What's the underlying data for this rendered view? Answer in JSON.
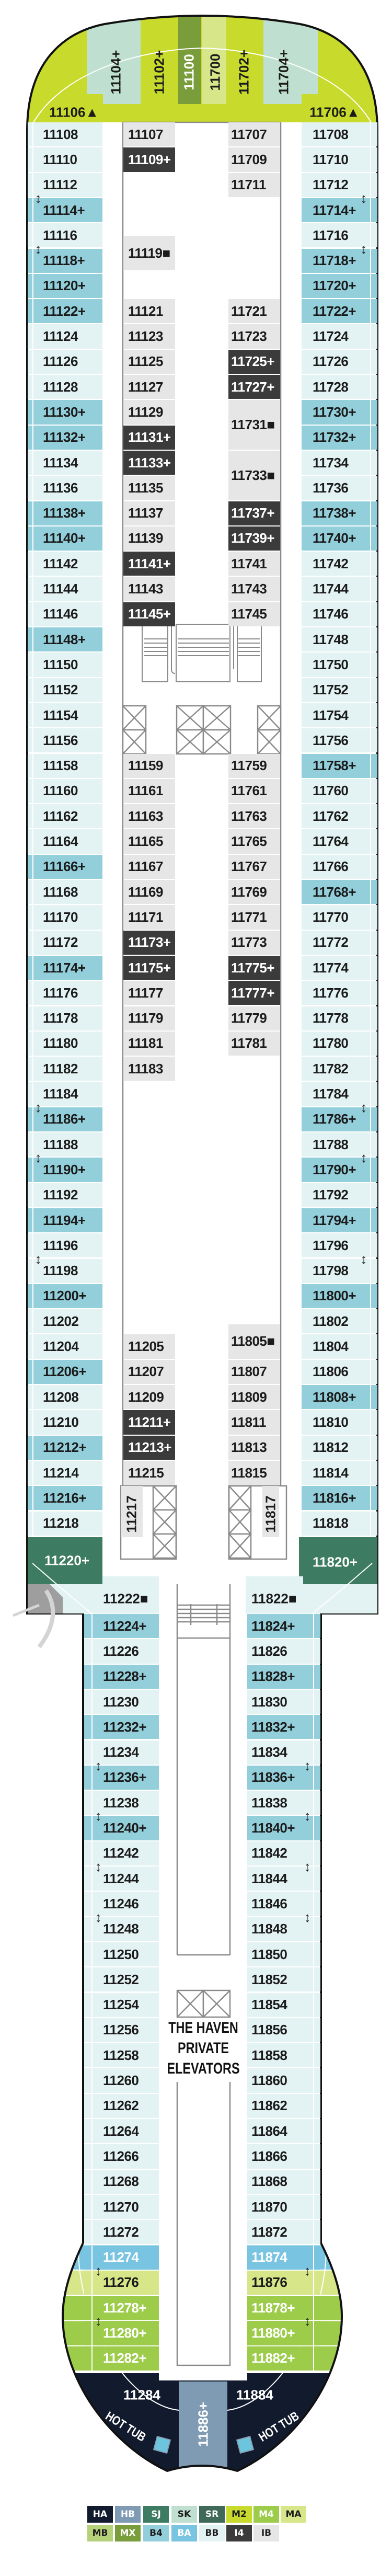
{
  "categories": {
    "HA": "#121b2d",
    "HB": "#7f9bb3",
    "SJ": "#3d7b62",
    "SK": "#bfe0d0",
    "SR": "#3f6a5a",
    "M2": "#c8da2c",
    "M4": "#9dcc4b",
    "MA": "#d8e68a",
    "MB": "#b5d27b",
    "MX": "#7a9d3b",
    "B4": "#93cfdb",
    "BA": "#79c4e1",
    "BB": "#e3f2f2",
    "I4": "#3b3b3b",
    "IB": "#e6e6e6"
  },
  "light_text_categories": [
    "HA",
    "HB",
    "SJ",
    "SR",
    "M4",
    "MX",
    "BA",
    "I4"
  ],
  "bow": {
    "vertical_cabins": [
      [
        "11104+",
        "SK"
      ],
      [
        "11102+",
        "M2"
      ],
      [
        "11100",
        "MX"
      ],
      [
        "11700",
        "MA"
      ],
      [
        "11702+",
        "M2"
      ],
      [
        "11704+",
        "SK"
      ]
    ],
    "corner_left": [
      "11106▲",
      "M2"
    ],
    "corner_right": [
      "11706▲",
      "M2"
    ]
  },
  "upper_left_outer": [
    [
      "11108",
      "BB"
    ],
    [
      "11110",
      "BB"
    ],
    [
      "11112",
      "BB"
    ],
    [
      "11114+",
      "B4"
    ],
    [
      "11116",
      "BB"
    ],
    [
      "11118+",
      "B4"
    ],
    [
      "11120+",
      "B4"
    ],
    [
      "11122+",
      "B4"
    ],
    [
      "11124",
      "BB"
    ],
    [
      "11126",
      "BB"
    ],
    [
      "11128",
      "BB"
    ],
    [
      "11130+",
      "B4"
    ],
    [
      "11132+",
      "B4"
    ],
    [
      "11134",
      "BB"
    ],
    [
      "11136",
      "BB"
    ],
    [
      "11138+",
      "B4"
    ],
    [
      "11140+",
      "B4"
    ],
    [
      "11142",
      "BB"
    ],
    [
      "11144",
      "BB"
    ],
    [
      "11146",
      "BB"
    ],
    [
      "11148+",
      "B4"
    ],
    [
      "11150",
      "BB"
    ],
    [
      "11152",
      "BB"
    ],
    [
      "11154",
      "BB"
    ],
    [
      "11156",
      "BB"
    ],
    [
      "11158",
      "BB"
    ],
    [
      "11160",
      "BB"
    ],
    [
      "11162",
      "BB"
    ],
    [
      "11164",
      "BB"
    ],
    [
      "11166+",
      "B4"
    ],
    [
      "11168",
      "BB"
    ],
    [
      "11170",
      "BB"
    ],
    [
      "11172",
      "BB"
    ],
    [
      "11174+",
      "B4"
    ],
    [
      "11176",
      "BB"
    ],
    [
      "11178",
      "BB"
    ],
    [
      "11180",
      "BB"
    ],
    [
      "11182",
      "BB"
    ],
    [
      "11184",
      "BB"
    ],
    [
      "11186+",
      "B4"
    ],
    [
      "11188",
      "BB"
    ],
    [
      "11190+",
      "B4"
    ],
    [
      "11192",
      "BB"
    ],
    [
      "11194+",
      "B4"
    ],
    [
      "11196",
      "BB"
    ],
    [
      "11198",
      "BB"
    ],
    [
      "11200+",
      "B4"
    ],
    [
      "11202",
      "BB"
    ],
    [
      "11204",
      "BB"
    ],
    [
      "11206+",
      "B4"
    ],
    [
      "11208",
      "BB"
    ],
    [
      "11210",
      "BB"
    ],
    [
      "11212+",
      "B4"
    ],
    [
      "11214",
      "BB"
    ],
    [
      "11216+",
      "B4"
    ],
    [
      "11218",
      "BB"
    ]
  ],
  "upper_right_outer": [
    [
      "11708",
      "BB"
    ],
    [
      "11710",
      "BB"
    ],
    [
      "11712",
      "BB"
    ],
    [
      "11714+",
      "B4"
    ],
    [
      "11716",
      "BB"
    ],
    [
      "11718+",
      "B4"
    ],
    [
      "11720+",
      "B4"
    ],
    [
      "11722+",
      "B4"
    ],
    [
      "11724",
      "BB"
    ],
    [
      "11726",
      "BB"
    ],
    [
      "11728",
      "BB"
    ],
    [
      "11730+",
      "B4"
    ],
    [
      "11732+",
      "B4"
    ],
    [
      "11734",
      "BB"
    ],
    [
      "11736",
      "BB"
    ],
    [
      "11738+",
      "B4"
    ],
    [
      "11740+",
      "B4"
    ],
    [
      "11742",
      "BB"
    ],
    [
      "11744",
      "BB"
    ],
    [
      "11746",
      "BB"
    ],
    [
      "11748",
      "BB"
    ],
    [
      "11750",
      "BB"
    ],
    [
      "11752",
      "BB"
    ],
    [
      "11754",
      "BB"
    ],
    [
      "11756",
      "BB"
    ],
    [
      "11758+",
      "B4"
    ],
    [
      "11760",
      "BB"
    ],
    [
      "11762",
      "BB"
    ],
    [
      "11764",
      "BB"
    ],
    [
      "11766",
      "BB"
    ],
    [
      "11768+",
      "B4"
    ],
    [
      "11770",
      "BB"
    ],
    [
      "11772",
      "BB"
    ],
    [
      "11774",
      "BB"
    ],
    [
      "11776",
      "BB"
    ],
    [
      "11778",
      "BB"
    ],
    [
      "11780",
      "BB"
    ],
    [
      "11782",
      "BB"
    ],
    [
      "11784",
      "BB"
    ],
    [
      "11786+",
      "B4"
    ],
    [
      "11788",
      "BB"
    ],
    [
      "11790+",
      "B4"
    ],
    [
      "11792",
      "BB"
    ],
    [
      "11794+",
      "B4"
    ],
    [
      "11796",
      "BB"
    ],
    [
      "11798",
      "BB"
    ],
    [
      "11800+",
      "B4"
    ],
    [
      "11802",
      "BB"
    ],
    [
      "11804",
      "BB"
    ],
    [
      "11806",
      "BB"
    ],
    [
      "11808+",
      "B4"
    ],
    [
      "11810",
      "BB"
    ],
    [
      "11812",
      "BB"
    ],
    [
      "11814",
      "BB"
    ],
    [
      "11816+",
      "B4"
    ],
    [
      "11818",
      "BB"
    ]
  ],
  "upper_left_inner": [
    [
      [
        "11107",
        "IB"
      ],
      [
        "11109+",
        "I4"
      ]
    ],
    [
      [
        "11119■",
        "IB"
      ]
    ],
    [
      [
        "11121",
        "IB"
      ],
      [
        "11123",
        "IB"
      ],
      [
        "11125",
        "IB"
      ],
      [
        "11127",
        "IB"
      ],
      [
        "11129",
        "IB"
      ],
      [
        "11131+",
        "I4"
      ],
      [
        "11133+",
        "I4"
      ],
      [
        "11135",
        "IB"
      ],
      [
        "11137",
        "IB"
      ],
      [
        "11139",
        "IB"
      ],
      [
        "11141+",
        "I4"
      ],
      [
        "11143",
        "IB"
      ],
      [
        "11145+",
        "I4"
      ]
    ],
    [
      [
        "11159",
        "IB"
      ],
      [
        "11161",
        "IB"
      ],
      [
        "11163",
        "IB"
      ],
      [
        "11165",
        "IB"
      ],
      [
        "11167",
        "IB"
      ],
      [
        "11169",
        "IB"
      ],
      [
        "11171",
        "IB"
      ],
      [
        "11173+",
        "I4"
      ],
      [
        "11175+",
        "I4"
      ],
      [
        "11177",
        "IB"
      ],
      [
        "11179",
        "IB"
      ],
      [
        "11181",
        "IB"
      ],
      [
        "11183",
        "IB"
      ]
    ],
    [
      [
        "11205",
        "IB"
      ],
      [
        "11207",
        "IB"
      ],
      [
        "11209",
        "IB"
      ],
      [
        "11211+",
        "I4"
      ],
      [
        "11213+",
        "I4"
      ],
      [
        "11215",
        "IB"
      ]
    ]
  ],
  "upper_right_inner": [
    [
      [
        "11707",
        "IB"
      ],
      [
        "11709",
        "IB"
      ],
      [
        "11711",
        "IB"
      ]
    ],
    [
      [
        "11721",
        "IB"
      ],
      [
        "11723",
        "IB"
      ],
      [
        "11725+",
        "I4"
      ],
      [
        "11727+",
        "I4"
      ],
      [
        "11731■",
        "IB"
      ],
      [
        "11733■",
        "IB"
      ],
      [
        "11737+",
        "I4"
      ],
      [
        "11739+",
        "I4"
      ],
      [
        "11741",
        "IB"
      ],
      [
        "11743",
        "IB"
      ],
      [
        "11745",
        "IB"
      ]
    ],
    [
      [
        "11759",
        "IB"
      ],
      [
        "11761",
        "IB"
      ],
      [
        "11763",
        "IB"
      ],
      [
        "11765",
        "IB"
      ],
      [
        "11767",
        "IB"
      ],
      [
        "11769",
        "IB"
      ],
      [
        "11771",
        "IB"
      ],
      [
        "11773",
        "IB"
      ],
      [
        "11775+",
        "I4"
      ],
      [
        "11777+",
        "I4"
      ],
      [
        "11779",
        "IB"
      ],
      [
        "11781",
        "IB"
      ]
    ],
    [
      [
        "11805■",
        "IB"
      ]
    ],
    [
      [
        "11807",
        "IB"
      ],
      [
        "11809",
        "IB"
      ],
      [
        "11811",
        "IB"
      ],
      [
        "11813",
        "IB"
      ],
      [
        "11815",
        "IB"
      ]
    ]
  ],
  "mid": {
    "left_vertical": [
      "11217",
      "IB"
    ],
    "right_vertical": [
      "11817",
      "IB"
    ],
    "left_corner": [
      "11220+",
      "SJ"
    ],
    "right_corner": [
      "11820+",
      "SJ"
    ],
    "left_wide": [
      "11222■",
      "BB"
    ],
    "right_wide": [
      "11822■",
      "BB"
    ]
  },
  "lower_left": [
    [
      "11224+",
      "B4"
    ],
    [
      "11226",
      "BB"
    ],
    [
      "11228+",
      "B4"
    ],
    [
      "11230",
      "BB"
    ],
    [
      "11232+",
      "B4"
    ],
    [
      "11234",
      "BB"
    ],
    [
      "11236+",
      "B4"
    ],
    [
      "11238",
      "BB"
    ],
    [
      "11240+",
      "B4"
    ],
    [
      "11242",
      "BB"
    ],
    [
      "11244",
      "BB"
    ],
    [
      "11246",
      "BB"
    ],
    [
      "11248",
      "BB"
    ],
    [
      "11250",
      "BB"
    ],
    [
      "11252",
      "BB"
    ],
    [
      "11254",
      "BB"
    ],
    [
      "11256",
      "BB"
    ],
    [
      "11258",
      "BB"
    ],
    [
      "11260",
      "BB"
    ],
    [
      "11262",
      "BB"
    ],
    [
      "11264",
      "BB"
    ],
    [
      "11266",
      "BB"
    ],
    [
      "11268",
      "BB"
    ],
    [
      "11270",
      "BB"
    ],
    [
      "11272",
      "BB"
    ],
    [
      "11274",
      "BA"
    ],
    [
      "11276",
      "MA"
    ],
    [
      "11278+",
      "M4"
    ],
    [
      "11280+",
      "M4"
    ],
    [
      "11282+",
      "M4"
    ]
  ],
  "lower_right": [
    [
      "11824+",
      "B4"
    ],
    [
      "11826",
      "BB"
    ],
    [
      "11828+",
      "B4"
    ],
    [
      "11830",
      "BB"
    ],
    [
      "11832+",
      "B4"
    ],
    [
      "11834",
      "BB"
    ],
    [
      "11836+",
      "B4"
    ],
    [
      "11838",
      "BB"
    ],
    [
      "11840+",
      "B4"
    ],
    [
      "11842",
      "BB"
    ],
    [
      "11844",
      "BB"
    ],
    [
      "11846",
      "BB"
    ],
    [
      "11848",
      "BB"
    ],
    [
      "11850",
      "BB"
    ],
    [
      "11852",
      "BB"
    ],
    [
      "11854",
      "BB"
    ],
    [
      "11856",
      "BB"
    ],
    [
      "11858",
      "BB"
    ],
    [
      "11860",
      "BB"
    ],
    [
      "11862",
      "BB"
    ],
    [
      "11864",
      "BB"
    ],
    [
      "11866",
      "BB"
    ],
    [
      "11868",
      "BB"
    ],
    [
      "11870",
      "BB"
    ],
    [
      "11872",
      "BB"
    ],
    [
      "11874",
      "BA"
    ],
    [
      "11876",
      "MA"
    ],
    [
      "11878+",
      "M4"
    ],
    [
      "11880+",
      "M4"
    ],
    [
      "11882+",
      "M4"
    ]
  ],
  "stern": {
    "left": [
      "11284",
      "HA"
    ],
    "right": [
      "11884",
      "HA"
    ],
    "center": [
      "11886+",
      "HB"
    ],
    "hot_tub_label": "HOT TUB"
  },
  "connecting_pairs": {
    "upper_left": [
      [
        "11112",
        "11114+"
      ],
      [
        "11116",
        "11118+"
      ],
      [
        "11184",
        "11186+"
      ],
      [
        "11188",
        "11190+"
      ],
      [
        "11196",
        "11198"
      ]
    ],
    "upper_right": [
      [
        "11712",
        "11714+"
      ],
      [
        "11716",
        "11718+"
      ],
      [
        "11784",
        "11786+"
      ],
      [
        "11788",
        "11790+"
      ],
      [
        "11796",
        "11798"
      ]
    ],
    "lower_left": [
      [
        "11234",
        "11236+"
      ],
      [
        "11238",
        "11240+"
      ],
      [
        "11242",
        "11244"
      ],
      [
        "11246",
        "11248"
      ],
      [
        "11274",
        "11276"
      ],
      [
        "11278+",
        "11280+"
      ]
    ],
    "lower_right": [
      [
        "11834",
        "11836+"
      ],
      [
        "11838",
        "11840+"
      ],
      [
        "11842",
        "11844"
      ],
      [
        "11846",
        "11848"
      ],
      [
        "11874",
        "11876"
      ],
      [
        "11878+",
        "11880+"
      ]
    ]
  },
  "haven_elevators_label": [
    "THE HAVEN",
    "PRIVATE",
    "ELEVATORS"
  ],
  "legend": [
    [
      "HA",
      "HB",
      "SJ",
      "SK",
      "SR",
      "M2",
      "M4",
      "MA"
    ],
    [
      "MB",
      "MX",
      "B4",
      "BA",
      "BB",
      "I4",
      "IB"
    ]
  ]
}
